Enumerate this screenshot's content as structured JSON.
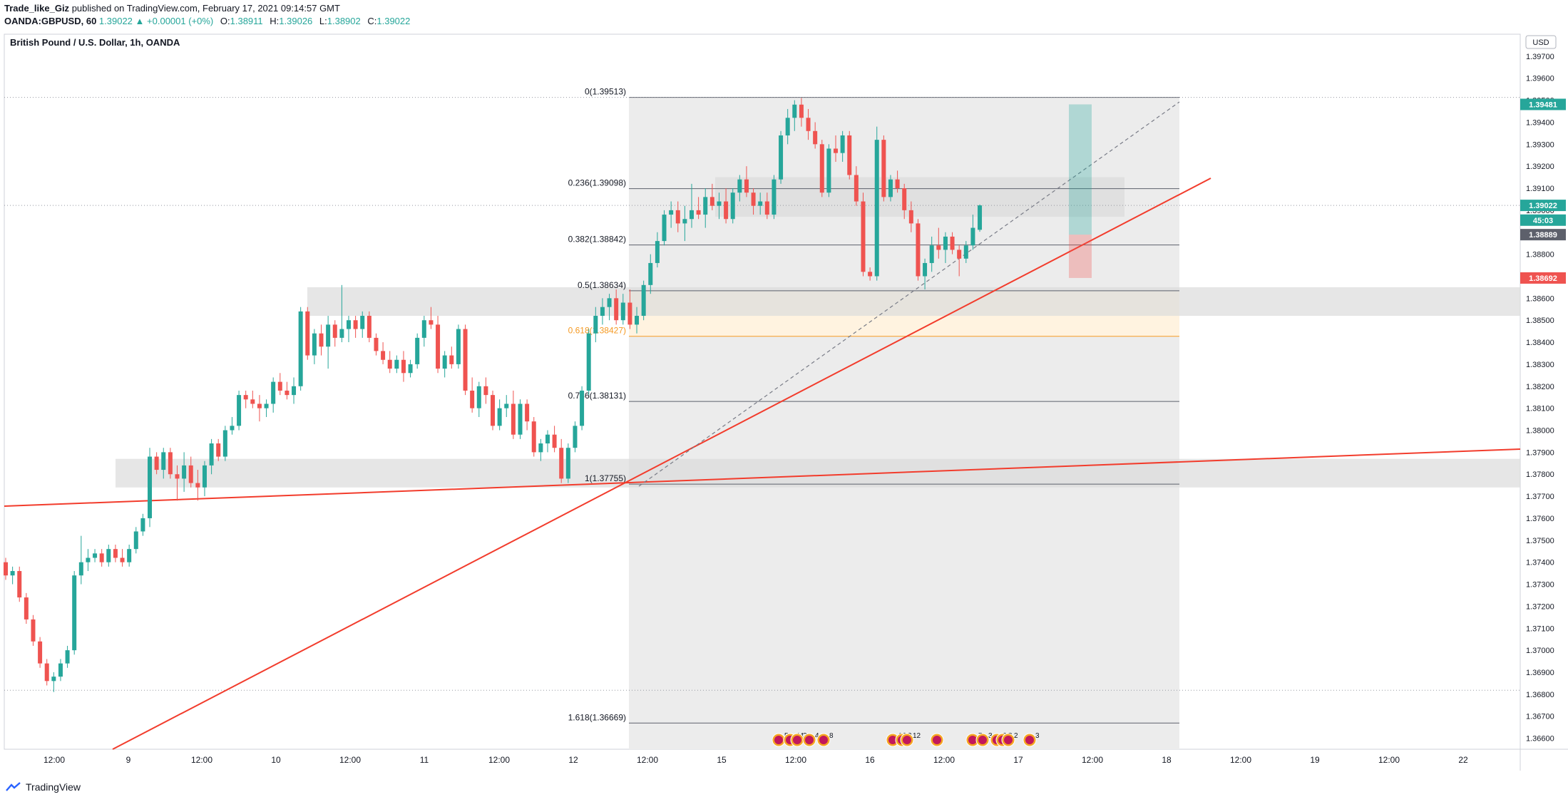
{
  "header": {
    "author": "Trade_like_Giz",
    "published": "published on TradingView.com, February 17, 2021 09:14:57 GMT",
    "symbol": "OANDA:GBPUSD, 60",
    "price": "1.39022",
    "change": "▲ +0.00001 (+0%)",
    "o_label": "O:",
    "o": "1.38911",
    "h_label": "H:",
    "h": "1.39026",
    "l_label": "L:",
    "l": "1.38902",
    "c_label": "C:",
    "c": "1.39022"
  },
  "chart_title": "British Pound / U.S. Dollar, 1h, OANDA",
  "currency": "USD",
  "footer_brand": "TradingView",
  "colors": {
    "up": "#26a69a",
    "down": "#ef5350",
    "trend": "#f23c2c",
    "fib": "#787b86",
    "fib618": "#f59a23",
    "orange_zone": "#fff3e0",
    "zone": "#e6e6e6"
  },
  "chart_data": {
    "type": "candlestick",
    "title": "British Pound / U.S. Dollar, 1h, OANDA",
    "ylim": [
      1.3655,
      1.398
    ],
    "y_ticks": [
      1.397,
      1.396,
      1.395,
      1.394,
      1.393,
      1.392,
      1.391,
      1.39,
      1.389,
      1.388,
      1.387,
      1.386,
      1.385,
      1.384,
      1.383,
      1.382,
      1.381,
      1.38,
      1.379,
      1.378,
      1.377,
      1.376,
      1.375,
      1.374,
      1.373,
      1.372,
      1.371,
      1.37,
      1.369,
      1.368,
      1.367,
      1.366
    ],
    "x_labels": [
      "12:00",
      "9",
      "12:00",
      "10",
      "12:00",
      "11",
      "12:00",
      "12",
      "12:00",
      "15",
      "12:00",
      "16",
      "12:00",
      "17",
      "12:00",
      "18",
      "12:00",
      "19",
      "12:00",
      "22"
    ],
    "candles": [
      [
        1.374,
        1.3742,
        1.3732,
        1.3734
      ],
      [
        1.3734,
        1.3738,
        1.373,
        1.3736
      ],
      [
        1.3736,
        1.3738,
        1.3722,
        1.3724
      ],
      [
        1.3724,
        1.3726,
        1.3712,
        1.3714
      ],
      [
        1.3714,
        1.3716,
        1.3702,
        1.3704
      ],
      [
        1.3704,
        1.3706,
        1.3692,
        1.3694
      ],
      [
        1.3694,
        1.3696,
        1.3684,
        1.3686
      ],
      [
        1.3686,
        1.369,
        1.3681,
        1.3688
      ],
      [
        1.3688,
        1.3696,
        1.3686,
        1.3694
      ],
      [
        1.3694,
        1.3702,
        1.3692,
        1.37
      ],
      [
        1.37,
        1.3736,
        1.3698,
        1.3734
      ],
      [
        1.3734,
        1.3752,
        1.373,
        1.374
      ],
      [
        1.374,
        1.3746,
        1.3736,
        1.3742
      ],
      [
        1.3742,
        1.3746,
        1.374,
        1.3744
      ],
      [
        1.3744,
        1.3746,
        1.3738,
        1.374
      ],
      [
        1.374,
        1.3748,
        1.3738,
        1.3746
      ],
      [
        1.3746,
        1.3748,
        1.374,
        1.3742
      ],
      [
        1.3742,
        1.3746,
        1.3738,
        1.374
      ],
      [
        1.374,
        1.3748,
        1.3738,
        1.3746
      ],
      [
        1.3746,
        1.3756,
        1.3744,
        1.3754
      ],
      [
        1.3754,
        1.3762,
        1.3752,
        1.376
      ],
      [
        1.376,
        1.3792,
        1.3756,
        1.3788
      ],
      [
        1.3788,
        1.379,
        1.378,
        1.3782
      ],
      [
        1.3782,
        1.3792,
        1.3778,
        1.379
      ],
      [
        1.379,
        1.3792,
        1.3778,
        1.378
      ],
      [
        1.378,
        1.3784,
        1.3768,
        1.3778
      ],
      [
        1.3778,
        1.379,
        1.3772,
        1.3784
      ],
      [
        1.3784,
        1.3788,
        1.3774,
        1.3776
      ],
      [
        1.3776,
        1.3782,
        1.3768,
        1.3774
      ],
      [
        1.3774,
        1.3786,
        1.377,
        1.3784
      ],
      [
        1.3784,
        1.3796,
        1.378,
        1.3794
      ],
      [
        1.3794,
        1.3796,
        1.3786,
        1.3788
      ],
      [
        1.3788,
        1.3802,
        1.3786,
        1.38
      ],
      [
        1.38,
        1.3806,
        1.3798,
        1.3802
      ],
      [
        1.3802,
        1.3818,
        1.38,
        1.3816
      ],
      [
        1.3816,
        1.3818,
        1.381,
        1.3814
      ],
      [
        1.3814,
        1.3818,
        1.381,
        1.3812
      ],
      [
        1.3812,
        1.3816,
        1.3804,
        1.381
      ],
      [
        1.381,
        1.3814,
        1.3806,
        1.3812
      ],
      [
        1.3812,
        1.3824,
        1.3808,
        1.3822
      ],
      [
        1.3822,
        1.3826,
        1.3816,
        1.3818
      ],
      [
        1.3818,
        1.3822,
        1.3814,
        1.3816
      ],
      [
        1.3816,
        1.3824,
        1.3812,
        1.382
      ],
      [
        1.382,
        1.3856,
        1.3818,
        1.3854
      ],
      [
        1.3854,
        1.3856,
        1.3832,
        1.3834
      ],
      [
        1.3834,
        1.3846,
        1.383,
        1.3844
      ],
      [
        1.3844,
        1.3848,
        1.3834,
        1.3838
      ],
      [
        1.3838,
        1.3852,
        1.3828,
        1.3848
      ],
      [
        1.3848,
        1.385,
        1.3838,
        1.3842
      ],
      [
        1.3842,
        1.3866,
        1.384,
        1.3846
      ],
      [
        1.3846,
        1.3852,
        1.384,
        1.385
      ],
      [
        1.385,
        1.3852,
        1.3842,
        1.3846
      ],
      [
        1.3846,
        1.3854,
        1.3842,
        1.3852
      ],
      [
        1.3852,
        1.3854,
        1.384,
        1.3842
      ],
      [
        1.3842,
        1.3844,
        1.3834,
        1.3836
      ],
      [
        1.3836,
        1.384,
        1.383,
        1.3832
      ],
      [
        1.3832,
        1.3836,
        1.3826,
        1.3828
      ],
      [
        1.3828,
        1.3834,
        1.3826,
        1.3832
      ],
      [
        1.3832,
        1.3836,
        1.3822,
        1.3826
      ],
      [
        1.3826,
        1.3832,
        1.3824,
        1.383
      ],
      [
        1.383,
        1.3844,
        1.3828,
        1.3842
      ],
      [
        1.3842,
        1.3852,
        1.3838,
        1.385
      ],
      [
        1.385,
        1.3856,
        1.3846,
        1.3848
      ],
      [
        1.3848,
        1.3852,
        1.3826,
        1.3828
      ],
      [
        1.3828,
        1.3836,
        1.3824,
        1.3834
      ],
      [
        1.3834,
        1.3838,
        1.3828,
        1.383
      ],
      [
        1.383,
        1.3848,
        1.3828,
        1.3846
      ],
      [
        1.3846,
        1.3848,
        1.3816,
        1.3818
      ],
      [
        1.3818,
        1.3824,
        1.3808,
        1.381
      ],
      [
        1.381,
        1.3822,
        1.3806,
        1.382
      ],
      [
        1.382,
        1.3824,
        1.3812,
        1.3816
      ],
      [
        1.3816,
        1.3818,
        1.38,
        1.3802
      ],
      [
        1.3802,
        1.3814,
        1.38,
        1.381
      ],
      [
        1.381,
        1.3816,
        1.3806,
        1.3812
      ],
      [
        1.3812,
        1.3818,
        1.3796,
        1.3798
      ],
      [
        1.3798,
        1.3814,
        1.3796,
        1.3812
      ],
      [
        1.3812,
        1.3814,
        1.38,
        1.3804
      ],
      [
        1.3804,
        1.3806,
        1.3788,
        1.379
      ],
      [
        1.379,
        1.3796,
        1.3786,
        1.3794
      ],
      [
        1.3794,
        1.38,
        1.379,
        1.3798
      ],
      [
        1.3798,
        1.3802,
        1.379,
        1.3792
      ],
      [
        1.3792,
        1.3796,
        1.3776,
        1.3778
      ],
      [
        1.3778,
        1.3794,
        1.3776,
        1.3792
      ],
      [
        1.3792,
        1.3804,
        1.379,
        1.3802
      ],
      [
        1.3802,
        1.382,
        1.38,
        1.3818
      ],
      [
        1.3818,
        1.3846,
        1.3816,
        1.3844
      ],
      [
        1.3844,
        1.3856,
        1.384,
        1.3852
      ],
      [
        1.3852,
        1.386,
        1.3848,
        1.3856
      ],
      [
        1.3856,
        1.3862,
        1.385,
        1.386
      ],
      [
        1.386,
        1.3864,
        1.3848,
        1.385
      ],
      [
        1.385,
        1.3862,
        1.3848,
        1.3858
      ],
      [
        1.3858,
        1.3864,
        1.3846,
        1.3848
      ],
      [
        1.3848,
        1.3856,
        1.3844,
        1.3852
      ],
      [
        1.3852,
        1.3868,
        1.385,
        1.3866
      ],
      [
        1.3866,
        1.388,
        1.3862,
        1.3876
      ],
      [
        1.3876,
        1.389,
        1.3874,
        1.3886
      ],
      [
        1.3886,
        1.39,
        1.3884,
        1.3898
      ],
      [
        1.3898,
        1.3904,
        1.3892,
        1.39
      ],
      [
        1.39,
        1.3904,
        1.389,
        1.3894
      ],
      [
        1.3894,
        1.3902,
        1.3886,
        1.3896
      ],
      [
        1.3896,
        1.3912,
        1.3892,
        1.39
      ],
      [
        1.39,
        1.3906,
        1.3896,
        1.3898
      ],
      [
        1.3898,
        1.391,
        1.3892,
        1.3906
      ],
      [
        1.3906,
        1.3912,
        1.39,
        1.3902
      ],
      [
        1.3902,
        1.3908,
        1.3896,
        1.3904
      ],
      [
        1.3904,
        1.391,
        1.3894,
        1.3896
      ],
      [
        1.3896,
        1.391,
        1.3894,
        1.3908
      ],
      [
        1.3908,
        1.3916,
        1.3904,
        1.3914
      ],
      [
        1.3914,
        1.392,
        1.3906,
        1.3908
      ],
      [
        1.3908,
        1.391,
        1.3898,
        1.3902
      ],
      [
        1.3902,
        1.3908,
        1.3898,
        1.3904
      ],
      [
        1.3904,
        1.3908,
        1.3896,
        1.3898
      ],
      [
        1.3898,
        1.3916,
        1.3896,
        1.3914
      ],
      [
        1.3914,
        1.3936,
        1.3912,
        1.3934
      ],
      [
        1.3934,
        1.3946,
        1.393,
        1.3942
      ],
      [
        1.3942,
        1.395,
        1.3936,
        1.3948
      ],
      [
        1.3948,
        1.3951,
        1.3938,
        1.3942
      ],
      [
        1.3942,
        1.3946,
        1.3932,
        1.3936
      ],
      [
        1.3936,
        1.394,
        1.3928,
        1.393
      ],
      [
        1.393,
        1.3932,
        1.3906,
        1.3908
      ],
      [
        1.3908,
        1.393,
        1.3906,
        1.3928
      ],
      [
        1.3928,
        1.3934,
        1.3922,
        1.3926
      ],
      [
        1.3926,
        1.3936,
        1.3922,
        1.3934
      ],
      [
        1.3934,
        1.3936,
        1.3914,
        1.3916
      ],
      [
        1.3916,
        1.392,
        1.3902,
        1.3904
      ],
      [
        1.3904,
        1.3908,
        1.387,
        1.3872
      ],
      [
        1.3872,
        1.3874,
        1.3868,
        1.387
      ],
      [
        1.387,
        1.3938,
        1.3868,
        1.3932
      ],
      [
        1.3932,
        1.3934,
        1.3904,
        1.3906
      ],
      [
        1.3906,
        1.3916,
        1.3904,
        1.3914
      ],
      [
        1.3914,
        1.3918,
        1.3908,
        1.391
      ],
      [
        1.391,
        1.3912,
        1.3896,
        1.39
      ],
      [
        1.39,
        1.3904,
        1.389,
        1.3894
      ],
      [
        1.3894,
        1.3896,
        1.3868,
        1.387
      ],
      [
        1.387,
        1.3878,
        1.3864,
        1.3876
      ],
      [
        1.3876,
        1.3888,
        1.3872,
        1.3884
      ],
      [
        1.3884,
        1.3892,
        1.3878,
        1.3882
      ],
      [
        1.3882,
        1.389,
        1.3876,
        1.3888
      ],
      [
        1.3888,
        1.389,
        1.388,
        1.3882
      ],
      [
        1.3882,
        1.3884,
        1.387,
        1.3878
      ],
      [
        1.3878,
        1.3886,
        1.3876,
        1.3884
      ],
      [
        1.3884,
        1.3898,
        1.3882,
        1.3892
      ],
      [
        1.38911,
        1.39026,
        1.38902,
        1.39022
      ]
    ],
    "fib_levels": [
      {
        "label": "0(1.39513)",
        "value": 1.39513
      },
      {
        "label": "0.236(1.39098)",
        "value": 1.39098
      },
      {
        "label": "0.382(1.38842)",
        "value": 1.38842
      },
      {
        "label": "0.5(1.38634)",
        "value": 1.38634
      },
      {
        "label": "0.618(1.38427)",
        "value": 1.38427
      },
      {
        "label": "0.786(1.38131)",
        "value": 1.38131
      },
      {
        "label": "1(1.37755)",
        "value": 1.37755
      },
      {
        "label": "1.618(1.36669)",
        "value": 1.36669
      }
    ],
    "zones": [
      {
        "name": "supply-zone",
        "from": 1.3897,
        "to": 1.3915
      },
      {
        "name": "mid-zone",
        "from": 1.3852,
        "to": 1.3865
      },
      {
        "name": "demand-zone",
        "from": 1.3774,
        "to": 1.3787
      }
    ],
    "price_labels": [
      {
        "name": "high-marker",
        "text": "1.39481",
        "value": 1.39481,
        "color": "#26a69a"
      },
      {
        "name": "last-price",
        "text": "1.39022",
        "value": 1.39022,
        "color": "#26a69a"
      },
      {
        "name": "countdown",
        "text": "45:03",
        "value": 1.38955,
        "color": "#26a69a"
      },
      {
        "name": "prev-close",
        "text": "1.38889",
        "value": 1.38889,
        "color": "#5d606b"
      },
      {
        "name": "stop-marker",
        "text": "1.38692",
        "value": 1.38692,
        "color": "#ef5350"
      }
    ],
    "events": [
      {
        "label": "5",
        "slot": 1092
      },
      {
        "label": "44",
        "slot": 1108
      },
      {
        "label": "3",
        "slot": 1118
      },
      {
        "label": "4",
        "slot": 1135
      },
      {
        "label": "8",
        "slot": 1155
      },
      {
        "label": "16",
        "slot": 1252
      },
      {
        "label": "2",
        "slot": 1265
      },
      {
        "label": "12",
        "slot": 1272
      },
      {
        "label": "",
        "slot": 1314
      },
      {
        "label": "7",
        "slot": 1364
      },
      {
        "label": "3",
        "slot": 1378
      },
      {
        "label": "24",
        "slot": 1398
      },
      {
        "label": "3",
        "slot": 1406
      },
      {
        "label": "2",
        "slot": 1414
      },
      {
        "label": "3",
        "slot": 1444
      }
    ]
  }
}
